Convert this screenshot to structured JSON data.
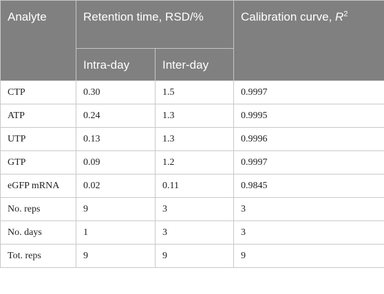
{
  "table": {
    "headers": {
      "analyte": "Analyte",
      "retention_time": "Retention time, RSD/%",
      "intra_day": "Intra-day",
      "inter_day": "Inter-day",
      "calibration_prefix": "Calibration curve, ",
      "calibration_r": "R",
      "calibration_sup": "2"
    },
    "rows": [
      {
        "analyte": "CTP",
        "intra": "0.30",
        "inter": "1.5",
        "calibration": "0.9997"
      },
      {
        "analyte": "ATP",
        "intra": "0.24",
        "inter": "1.3",
        "calibration": "0.9995"
      },
      {
        "analyte": "UTP",
        "intra": "0.13",
        "inter": "1.3",
        "calibration": "0.9996"
      },
      {
        "analyte": "GTP",
        "intra": "0.09",
        "inter": "1.2",
        "calibration": "0.9997"
      },
      {
        "analyte": "eGFP mRNA",
        "intra": "0.02",
        "inter": "0.11",
        "calibration": "0.9845"
      },
      {
        "analyte": "No. reps",
        "intra": "9",
        "inter": "3",
        "calibration": "3"
      },
      {
        "analyte": "No. days",
        "intra": "1",
        "inter": "3",
        "calibration": "3"
      },
      {
        "analyte": "Tot. reps",
        "intra": "9",
        "inter": "9",
        "calibration": "9"
      }
    ]
  }
}
